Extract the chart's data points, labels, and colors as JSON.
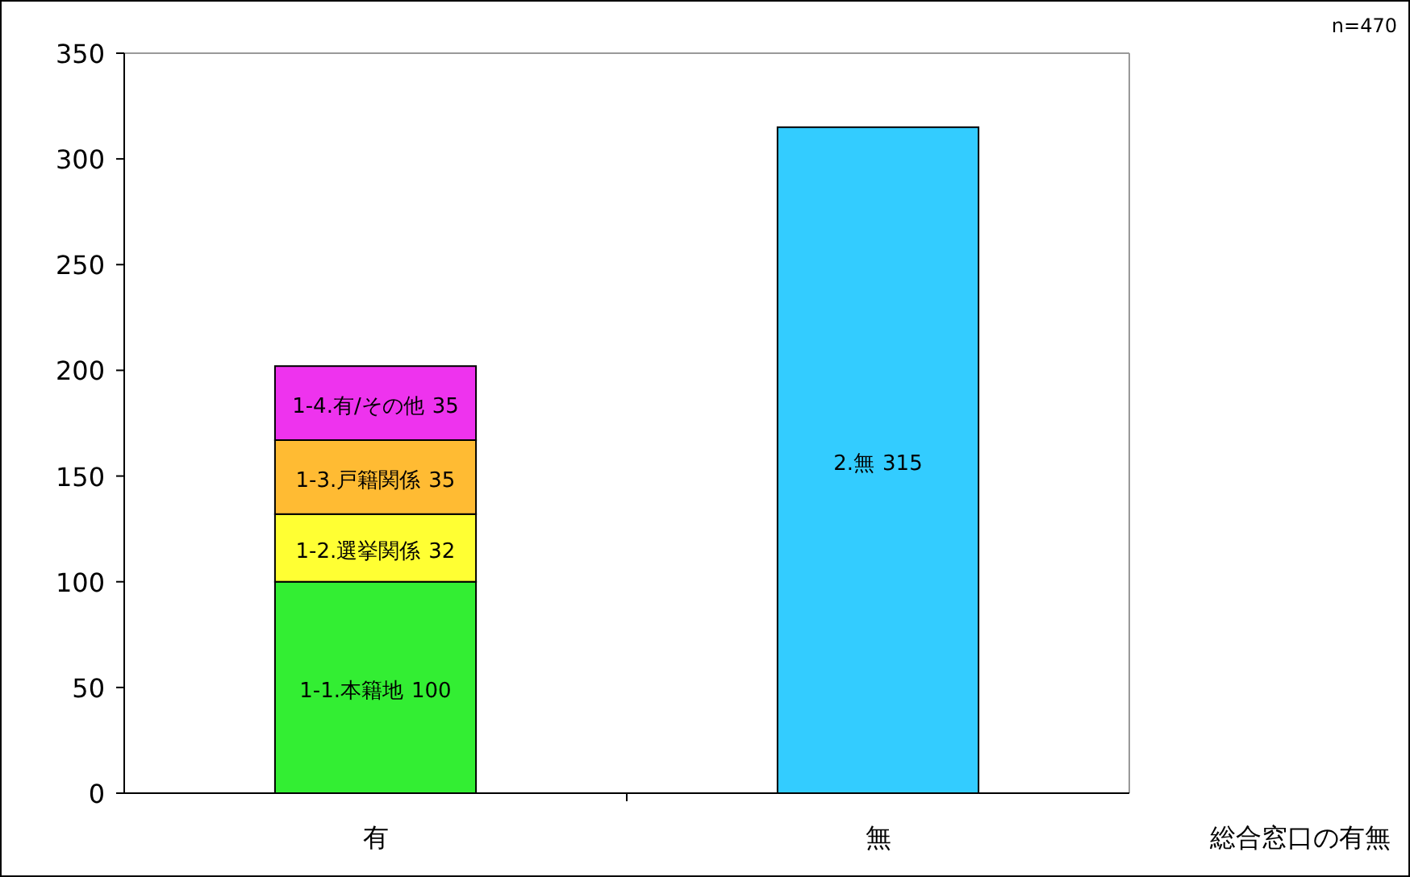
{
  "chart_data": {
    "type": "bar",
    "stacked": true,
    "categories": [
      "有",
      "無"
    ],
    "series": [
      {
        "name": "1-1.本籍地",
        "color": "#33ee33",
        "values": [
          100,
          null
        ]
      },
      {
        "name": "1-2.選挙関係",
        "color": "#ffff33",
        "values": [
          32,
          null
        ]
      },
      {
        "name": "1-3.戸籍関係",
        "color": "#ffbb33",
        "values": [
          35,
          null
        ]
      },
      {
        "name": "1-4.有/その他",
        "color": "#ee33ee",
        "values": [
          35,
          null
        ]
      },
      {
        "name": "2.無",
        "color": "#33ccff",
        "values": [
          null,
          315
        ]
      }
    ],
    "data_labels": true,
    "xlabel": "総合窓口の有無",
    "annotations": [
      "n=470"
    ],
    "ylim": [
      0,
      350
    ],
    "yticks": [
      0,
      50,
      100,
      150,
      200,
      250,
      300,
      350
    ]
  }
}
